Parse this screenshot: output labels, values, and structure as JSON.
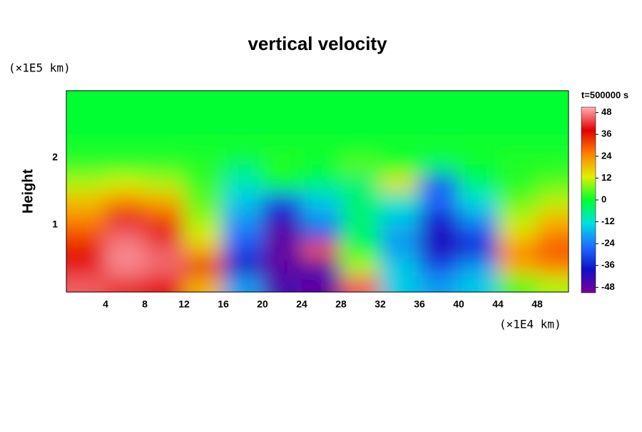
{
  "chart_data": {
    "type": "heatmap",
    "title": "vertical velocity",
    "y_unit_label": "(×1E5 km)",
    "y_label": "Height",
    "x_unit_label": "(×1E4 km)",
    "time_label": "t=500000 s",
    "xlim": [
      0,
      51.2
    ],
    "ylim": [
      0,
      3
    ],
    "xticks": [
      4,
      8,
      12,
      16,
      20,
      24,
      28,
      32,
      36,
      40,
      44,
      48
    ],
    "yticks": [
      1,
      2
    ],
    "x": [
      2,
      6,
      10,
      14,
      18,
      22,
      26,
      30,
      34,
      38,
      42,
      46,
      50
    ],
    "y": [
      0.125,
      0.375,
      0.625,
      0.875,
      1.125,
      1.375,
      1.625,
      1.875,
      2.125,
      2.375,
      2.625,
      2.875
    ],
    "z": [
      [
        45,
        42,
        40,
        20,
        -20,
        -45,
        -48,
        45,
        -15,
        -20,
        -15,
        5,
        10
      ],
      [
        40,
        48,
        46,
        36,
        -40,
        -48,
        -45,
        10,
        -15,
        -30,
        -20,
        20,
        25
      ],
      [
        36,
        48,
        45,
        20,
        -30,
        -48,
        30,
        0,
        -20,
        -40,
        -35,
        25,
        30
      ],
      [
        30,
        45,
        40,
        12,
        -25,
        -48,
        -30,
        -5,
        -20,
        -40,
        -30,
        15,
        25
      ],
      [
        24,
        36,
        30,
        8,
        -20,
        -40,
        -20,
        -5,
        -15,
        -35,
        -20,
        10,
        18
      ],
      [
        18,
        24,
        20,
        5,
        -15,
        -30,
        -15,
        -5,
        -10,
        -25,
        -12,
        5,
        10
      ],
      [
        10,
        12,
        10,
        3,
        -10,
        0,
        -5,
        -5,
        15,
        -30,
        -5,
        2,
        5
      ],
      [
        3,
        3,
        3,
        2,
        -5,
        2,
        0,
        5,
        0,
        -5,
        0,
        2,
        2
      ],
      [
        1,
        1,
        1,
        1,
        1,
        1,
        1,
        1,
        1,
        1,
        1,
        1,
        1
      ],
      [
        0,
        0,
        0,
        0,
        0,
        0,
        0,
        0,
        0,
        0,
        0,
        0,
        0
      ],
      [
        0,
        0,
        0,
        0,
        0,
        0,
        0,
        0,
        0,
        0,
        0,
        0,
        0
      ],
      [
        0,
        0,
        0,
        0,
        0,
        0,
        0,
        0,
        0,
        0,
        0,
        0,
        0
      ]
    ],
    "clim": [
      -51,
      51
    ],
    "cticks": [
      -48,
      -36,
      -24,
      -12,
      0,
      12,
      24,
      36,
      48
    ],
    "colormap": [
      "#7a0097",
      "#1010c8",
      "#1e6eff",
      "#00e0e0",
      "#00ff30",
      "#e0f000",
      "#ff8000",
      "#e00000",
      "#ffb0b8"
    ]
  }
}
